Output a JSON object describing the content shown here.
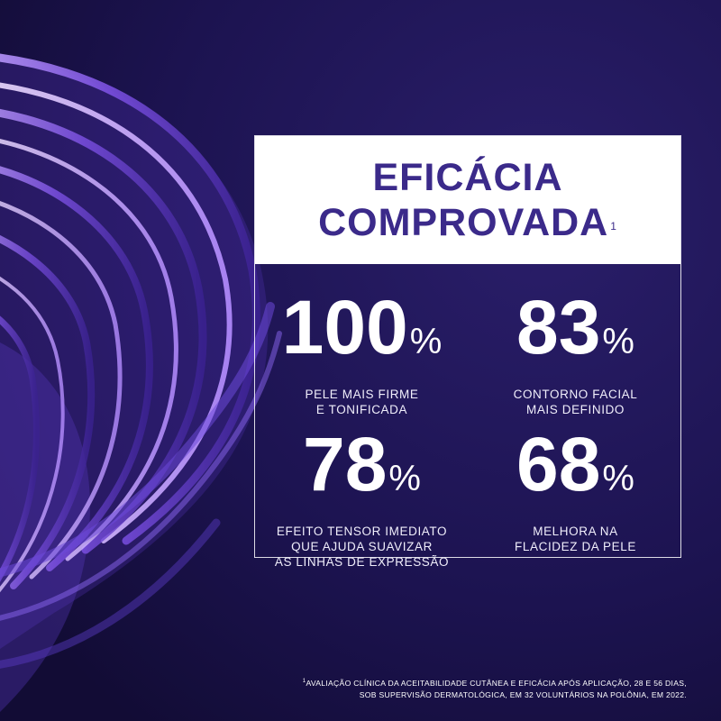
{
  "colors": {
    "background": "#1a1245",
    "title_box": "#ffffff",
    "title_text": "#3b2a8a",
    "stat_text": "#ffffff"
  },
  "title": {
    "line1": "EFICÁCIA",
    "line2": "COMPROVADA",
    "footnote_mark": "1"
  },
  "stats": [
    {
      "value": "100",
      "unit": "%",
      "desc_line1": "PELE MAIS FIRME",
      "desc_line2": "E TONIFICADA",
      "desc_line3": ""
    },
    {
      "value": "83",
      "unit": "%",
      "desc_line1": "CONTORNO FACIAL",
      "desc_line2": "MAIS DEFINIDO",
      "desc_line3": ""
    },
    {
      "value": "78",
      "unit": "%",
      "desc_line1": "EFEITO TENSOR IMEDIATO",
      "desc_line2": "QUE AJUDA SUAVIZAR",
      "desc_line3": "AS LINHAS DE EXPRESSÃO"
    },
    {
      "value": "68",
      "unit": "%",
      "desc_line1": "MELHORA NA",
      "desc_line2": "FLACIDEZ DA PELE",
      "desc_line3": ""
    }
  ],
  "footnote": {
    "mark": "1",
    "line1": "AVALIAÇÃO CLÍNICA DA ACEITABILIDADE CUTÂNEA E EFICÁCIA APÓS APLICAÇÃO, 28 E 56 DIAS,",
    "line2": "SOB SUPERVISÃO DERMATOLÓGICA, EM 32 VOLUNTÁRIOS NA POLÔNIA, EM 2022."
  }
}
